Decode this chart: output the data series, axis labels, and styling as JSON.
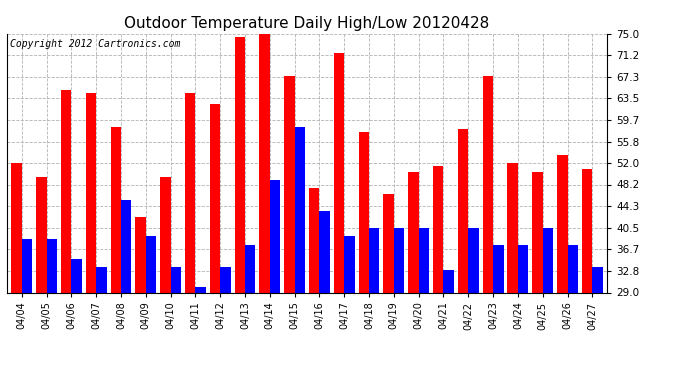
{
  "title": "Outdoor Temperature Daily High/Low 20120428",
  "copyright": "Copyright 2012 Cartronics.com",
  "dates": [
    "04/04",
    "04/05",
    "04/06",
    "04/07",
    "04/08",
    "04/09",
    "04/10",
    "04/11",
    "04/12",
    "04/13",
    "04/14",
    "04/15",
    "04/16",
    "04/17",
    "04/18",
    "04/19",
    "04/20",
    "04/21",
    "04/22",
    "04/23",
    "04/24",
    "04/25",
    "04/26",
    "04/27"
  ],
  "highs": [
    52.0,
    49.5,
    65.0,
    64.5,
    58.5,
    42.5,
    49.5,
    64.5,
    62.5,
    74.5,
    75.0,
    67.5,
    47.5,
    71.5,
    57.5,
    46.5,
    50.5,
    51.5,
    58.0,
    67.5,
    52.0,
    50.5,
    53.5,
    51.0
  ],
  "lows": [
    38.5,
    38.5,
    35.0,
    33.5,
    45.5,
    39.0,
    33.5,
    30.0,
    33.5,
    37.5,
    49.0,
    58.5,
    43.5,
    39.0,
    40.5,
    40.5,
    40.5,
    33.0,
    40.5,
    37.5,
    37.5,
    40.5,
    37.5,
    33.5
  ],
  "bar_color_high": "#ff0000",
  "bar_color_low": "#0000ff",
  "background_color": "#ffffff",
  "grid_color": "#aaaaaa",
  "yticks": [
    29.0,
    32.8,
    36.7,
    40.5,
    44.3,
    48.2,
    52.0,
    55.8,
    59.7,
    63.5,
    67.3,
    71.2,
    75.0
  ],
  "ylim": [
    29.0,
    75.0
  ],
  "title_fontsize": 11,
  "copyright_fontsize": 7
}
